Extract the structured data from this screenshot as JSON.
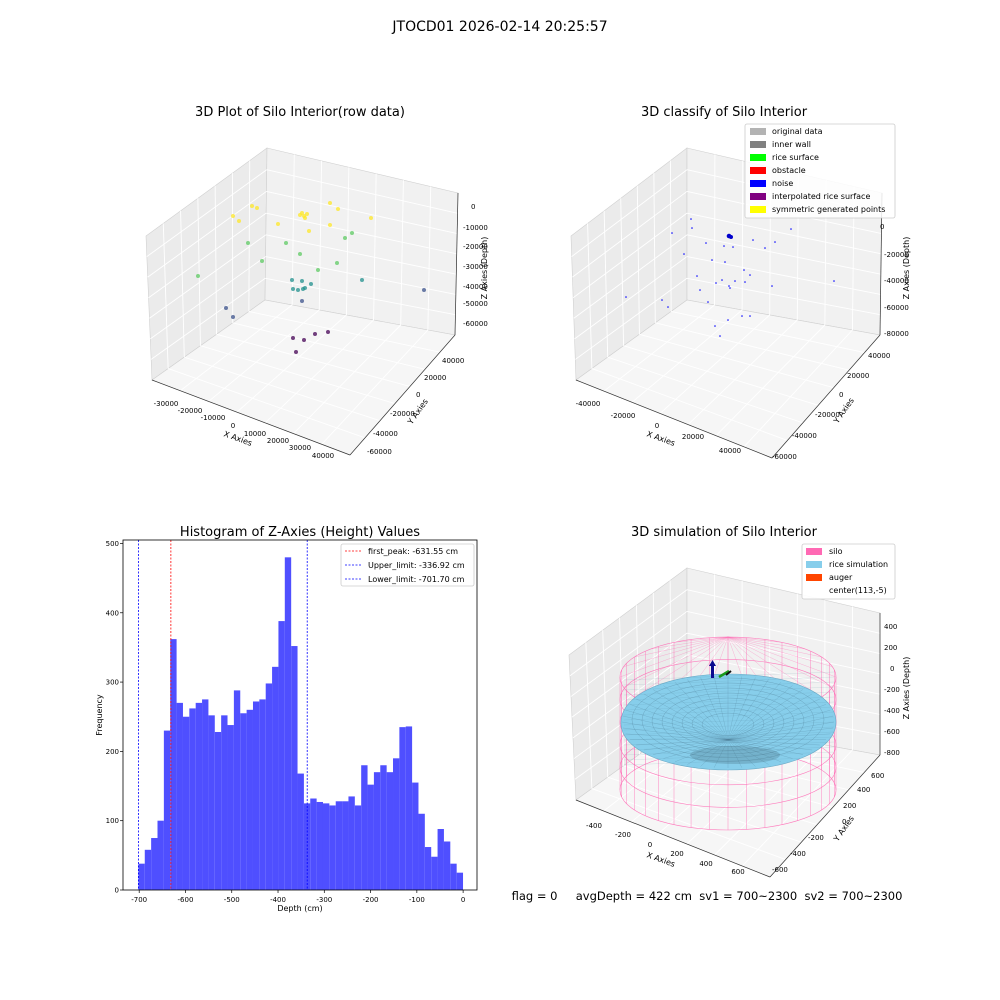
{
  "suptitle": "JTOCD01 2026-02-14 20:25:57",
  "footer": "flag = 0     avgDepth = 422 cm  sv1 = 700~2300  sv2 = 700~2300",
  "chart_data": [
    {
      "type": "scatter",
      "title": "3D Plot of Silo Interior(row data)",
      "xlabel": "X Axies",
      "ylabel": "Y Axies",
      "zlabel": "Z Axies (Depth)",
      "x_ticks": [
        "-30000",
        "-20000",
        "-10000",
        "0",
        "10000",
        "20000",
        "30000",
        "40000"
      ],
      "y_ticks": [
        "-60000",
        "-40000",
        "-20000",
        "0",
        "20000",
        "40000"
      ],
      "z_ticks": [
        "0",
        "-10000",
        "-20000",
        "-30000",
        "-40000",
        "-50000",
        "-60000"
      ],
      "colors": [
        "#440154",
        "#3b528b",
        "#21908d",
        "#5dc963",
        "#fde725"
      ]
    },
    {
      "type": "scatter",
      "title": "3D classify of Silo Interior",
      "xlabel": "X Axies",
      "ylabel": "Y Axies",
      "zlabel": "Z Axies (Depth)",
      "x_ticks": [
        "-40000",
        "-20000",
        "0",
        "20000",
        "40000"
      ],
      "y_ticks": [
        "-60000",
        "-40000",
        "-20000",
        "0",
        "20000",
        "40000"
      ],
      "z_ticks": [
        "0",
        "-20000",
        "-40000",
        "-60000",
        "-80000"
      ],
      "legend_position": "top-right",
      "legend": [
        {
          "label": "original data",
          "color": "#b3b3b3"
        },
        {
          "label": "inner wall",
          "color": "#808080"
        },
        {
          "label": "rice surface",
          "color": "#00ff00"
        },
        {
          "label": "obstacle",
          "color": "#ff0000"
        },
        {
          "label": "noise",
          "color": "#0000ff"
        },
        {
          "label": "interpolated rice surface",
          "color": "#800080"
        },
        {
          "label": "symmetric generated points",
          "color": "#ffff00"
        }
      ]
    },
    {
      "type": "bar",
      "title": "Histogram of Z-Axies (Height) Values",
      "xlabel": "Depth (cm)",
      "ylabel": "Frequency",
      "xlim": [
        -735,
        30
      ],
      "ylim": [
        0,
        505
      ],
      "x_ticks": [
        "-700",
        "-600",
        "-500",
        "-400",
        "-300",
        "-200",
        "-100",
        "0"
      ],
      "x_tick_values": [
        -700,
        -600,
        -500,
        -400,
        -300,
        -200,
        -100,
        0
      ],
      "y_ticks": [
        "0",
        "100",
        "200",
        "300",
        "400",
        "500"
      ],
      "y_tick_values": [
        0,
        100,
        200,
        300,
        400,
        500
      ],
      "bin_start": -701.7,
      "bin_width": 13.755,
      "values": [
        38,
        58,
        75,
        100,
        230,
        362,
        270,
        250,
        262,
        270,
        275,
        252,
        228,
        252,
        238,
        288,
        255,
        260,
        272,
        275,
        298,
        322,
        388,
        480,
        352,
        168,
        125,
        132,
        127,
        125,
        122,
        128,
        128,
        135,
        122,
        180,
        152,
        170,
        180,
        170,
        190,
        235,
        236,
        155,
        110,
        62,
        48,
        88,
        70,
        38,
        25
      ],
      "bar_color": "#4b4bff",
      "lines": [
        {
          "label": "first_peak: -631.55 cm",
          "x": -631.55,
          "color": "#ff0000"
        },
        {
          "label": "Upper_limit: -336.92 cm",
          "x": -336.92,
          "color": "#0000ff"
        },
        {
          "label": "Lower_limit: -701.70 cm",
          "x": -701.7,
          "color": "#0000ff"
        }
      ],
      "legend_position": "top-right"
    },
    {
      "type": "surface",
      "title": "3D simulation of Silo Interior",
      "xlabel": "X Axies",
      "ylabel": "Y Axies",
      "zlabel": "Z Axies (Depth)",
      "x_ticks": [
        "-400",
        "-200",
        "0",
        "200",
        "400",
        "600"
      ],
      "y_ticks": [
        "-600",
        "-400",
        "-200",
        "0",
        "200",
        "400",
        "600"
      ],
      "z_ticks": [
        "400",
        "200",
        "0",
        "-200",
        "-400",
        "-600",
        "-800"
      ],
      "legend_position": "top-right",
      "legend": [
        {
          "label": "silo",
          "color": "#ff69b4"
        },
        {
          "label": "rice simulation",
          "color": "#87ceeb"
        },
        {
          "label": "auger",
          "color": "#ff4500"
        },
        {
          "label": "center(113,-5)",
          "color": ""
        }
      ]
    }
  ]
}
